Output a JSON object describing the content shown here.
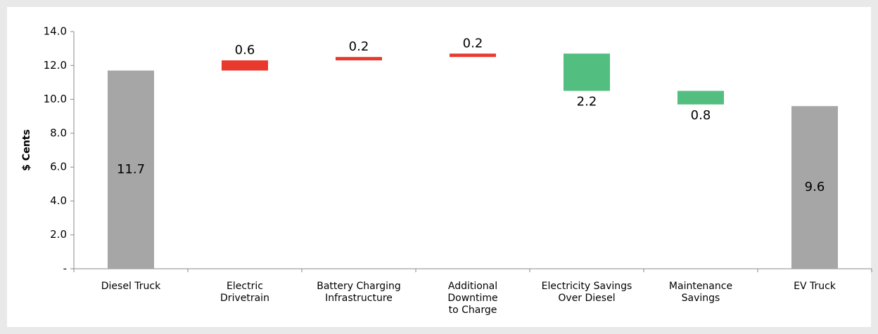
{
  "chart_data": {
    "type": "waterfall",
    "y_label": "$ Cents",
    "categories": [
      "Diesel Truck",
      "Electric\nDrivetrain",
      "Battery Charging\nInfrastructure",
      "Additional\nDowntime\nto Charge",
      "Electricity Savings\nOver Diesel",
      "Maintenance\nSavings",
      "EV Truck"
    ],
    "values": [
      11.7,
      0.6,
      0.2,
      0.2,
      2.2,
      0.8,
      9.6
    ],
    "measure": [
      "total",
      "increase",
      "increase",
      "increase",
      "decrease",
      "decrease",
      "total"
    ],
    "colors": {
      "total": "#a6a6a6",
      "increase": "#e8392c",
      "decrease": "#52be80"
    },
    "ylim": [
      0,
      14
    ],
    "yticks": [
      {
        "value": 0,
        "label": "-"
      },
      {
        "value": 2,
        "label": "2.0"
      },
      {
        "value": 4,
        "label": "4.0"
      },
      {
        "value": 6,
        "label": "6.0"
      },
      {
        "value": 8,
        "label": "8.0"
      },
      {
        "value": 10,
        "label": "10.0"
      },
      {
        "value": 12,
        "label": "12.0"
      },
      {
        "value": 14,
        "label": "14.0"
      }
    ],
    "grid": false
  }
}
